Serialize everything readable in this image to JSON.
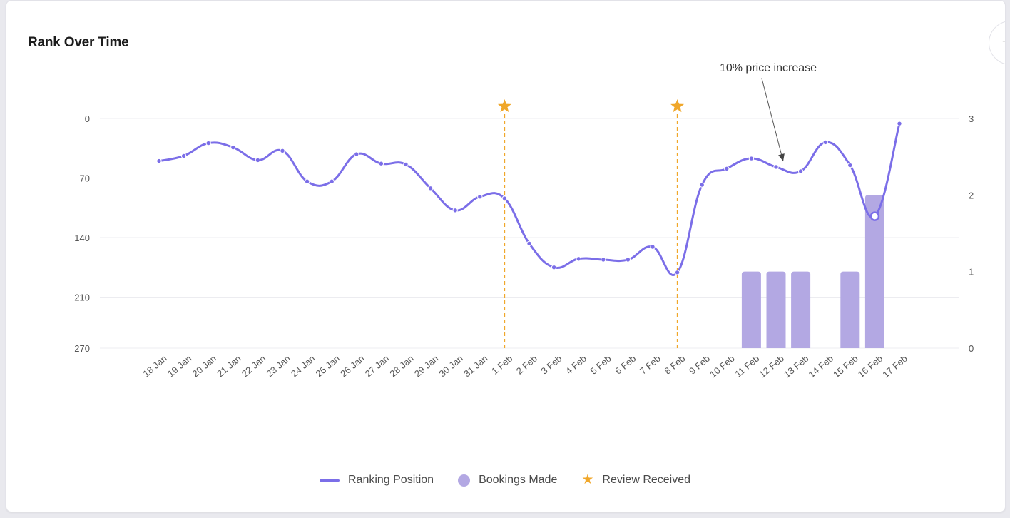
{
  "title": "Rank Over Time",
  "chart_data": {
    "type": "line",
    "title": "Rank Over Time",
    "categories": [
      "18 Jan",
      "19 Jan",
      "20 Jan",
      "21 Jan",
      "22 Jan",
      "23 Jan",
      "24 Jan",
      "25 Jan",
      "26 Jan",
      "27 Jan",
      "28 Jan",
      "29 Jan",
      "30 Jan",
      "31 Jan",
      "1 Feb",
      "2 Feb",
      "3 Feb",
      "4 Feb",
      "5 Feb",
      "6 Feb",
      "7 Feb",
      "8 Feb",
      "9 Feb",
      "10 Feb",
      "11 Feb",
      "12 Feb",
      "13 Feb",
      "14 Feb",
      "15 Feb",
      "16 Feb",
      "17 Feb"
    ],
    "series": [
      {
        "name": "Ranking Position",
        "axis": "left",
        "values": [
          50,
          44,
          29,
          34,
          49,
          38,
          74,
          74,
          42,
          53,
          54,
          82,
          108,
          92,
          94,
          147,
          175,
          165,
          166,
          166,
          151,
          181,
          78,
          59,
          47,
          57,
          62,
          28,
          55,
          115,
          6
        ]
      },
      {
        "name": "Bookings Made",
        "axis": "right",
        "type": "bar",
        "values": [
          0,
          0,
          0,
          0,
          0,
          0,
          0,
          0,
          0,
          0,
          0,
          0,
          0,
          0,
          0,
          0,
          0,
          0,
          0,
          0,
          0,
          0,
          0,
          0,
          1,
          1,
          1,
          0,
          1,
          2,
          0
        ]
      }
    ],
    "reviews": [
      "1 Feb",
      "8 Feb"
    ],
    "highlighted_point": "16 Feb",
    "annotation": {
      "text": "10% price increase",
      "target": "12 Feb"
    },
    "left_axis": {
      "ticks": [
        0,
        70,
        140,
        210,
        270
      ],
      "range": [
        0,
        270
      ],
      "reversed": true
    },
    "right_axis": {
      "ticks": [
        0,
        1,
        2,
        3
      ],
      "range": [
        0,
        3
      ]
    },
    "legend": [
      "Ranking Position",
      "Bookings Made",
      "Review Received"
    ],
    "colors": {
      "line": "#7b6ee8",
      "bars": "#b3a8e3",
      "review": "#f0a72a",
      "grid": "#ececf0",
      "axis_text": "#555555"
    }
  }
}
